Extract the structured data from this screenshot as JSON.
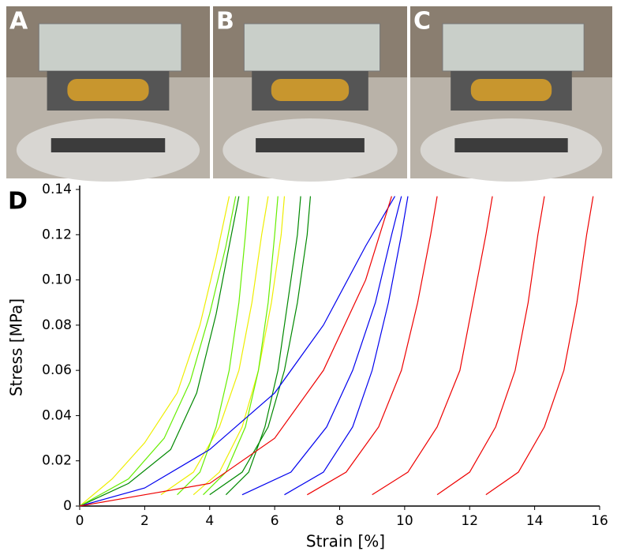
{
  "panel_labels": [
    "A",
    "B",
    "C"
  ],
  "chart_data": {
    "type": "line",
    "panel_label": "D",
    "x_label": "Strain [%]",
    "y_label": "Stress [MPa]",
    "xlim": [
      0,
      16
    ],
    "ylim": [
      0,
      0.14
    ],
    "xticks": [
      0,
      2,
      4,
      6,
      8,
      10,
      12,
      14,
      16
    ],
    "yticks": [
      0,
      0.02,
      0.04,
      0.06,
      0.08,
      {
        "value": 0.1,
        "label": "0.10"
      },
      0.12,
      0.14
    ],
    "series": [
      {
        "color": "#eeee00",
        "x": [
          0,
          1,
          2,
          3,
          3.7,
          4.2,
          4.6
        ],
        "values": [
          0,
          0.012,
          0.028,
          0.05,
          0.08,
          0.11,
          0.137
        ]
      },
      {
        "color": "#eeee00",
        "x": [
          2.5,
          3.5,
          4.3,
          4.9,
          5.3,
          5.6,
          5.8
        ],
        "values": [
          0.005,
          0.015,
          0.035,
          0.06,
          0.09,
          0.12,
          0.137
        ]
      },
      {
        "color": "#eeee00",
        "x": [
          3.5,
          4.3,
          5.0,
          5.5,
          5.9,
          6.2,
          6.3
        ],
        "values": [
          0.005,
          0.015,
          0.035,
          0.06,
          0.09,
          0.12,
          0.137
        ]
      },
      {
        "color": "#008800",
        "x": [
          0,
          1.5,
          2.8,
          3.6,
          4.2,
          4.6,
          4.9
        ],
        "values": [
          0,
          0.01,
          0.025,
          0.05,
          0.085,
          0.115,
          0.137
        ]
      },
      {
        "color": "#008800",
        "x": [
          4.5,
          5.2,
          5.7,
          6.1,
          6.4,
          6.7,
          6.8
        ],
        "values": [
          0.005,
          0.015,
          0.035,
          0.06,
          0.09,
          0.12,
          0.137
        ]
      },
      {
        "color": "#008800",
        "x": [
          4,
          5.0,
          5.8,
          6.3,
          6.7,
          7.0,
          7.1
        ],
        "values": [
          0.005,
          0.015,
          0.035,
          0.06,
          0.09,
          0.12,
          0.137
        ]
      },
      {
        "color": "#66ee00",
        "x": [
          0,
          1.5,
          2.6,
          3.4,
          4.0,
          4.5,
          4.8
        ],
        "values": [
          0,
          0.012,
          0.03,
          0.055,
          0.085,
          0.115,
          0.137
        ]
      },
      {
        "color": "#66ee00",
        "x": [
          3,
          3.7,
          4.2,
          4.6,
          4.9,
          5.1,
          5.2
        ],
        "values": [
          0.005,
          0.015,
          0.035,
          0.06,
          0.09,
          0.12,
          0.137
        ]
      },
      {
        "color": "#66ee00",
        "x": [
          3.8,
          4.5,
          5.1,
          5.5,
          5.8,
          6.0,
          6.1
        ],
        "values": [
          0.005,
          0.015,
          0.035,
          0.06,
          0.09,
          0.12,
          0.137
        ]
      },
      {
        "color": "#0000ee",
        "x": [
          0,
          2,
          4,
          6,
          7.5,
          8.8,
          9.7
        ],
        "values": [
          0,
          0.008,
          0.025,
          0.05,
          0.08,
          0.115,
          0.137
        ]
      },
      {
        "color": "#0000ee",
        "x": [
          5,
          6.5,
          7.6,
          8.4,
          9.1,
          9.6,
          9.9
        ],
        "values": [
          0.005,
          0.015,
          0.035,
          0.06,
          0.09,
          0.12,
          0.137
        ]
      },
      {
        "color": "#0000ee",
        "x": [
          6.3,
          7.5,
          8.4,
          9.0,
          9.5,
          9.9,
          10.1
        ],
        "values": [
          0.005,
          0.015,
          0.035,
          0.06,
          0.09,
          0.12,
          0.137
        ]
      },
      {
        "color": "#ee0000",
        "x": [
          0,
          2,
          4,
          6,
          7.5,
          8.8,
          9.6
        ],
        "values": [
          0,
          0.005,
          0.01,
          0.03,
          0.06,
          0.1,
          0.137
        ]
      },
      {
        "color": "#ee0000",
        "x": [
          7,
          8.2,
          9.2,
          9.9,
          10.4,
          10.8,
          11
        ],
        "values": [
          0.005,
          0.015,
          0.035,
          0.06,
          0.09,
          0.12,
          0.137
        ]
      },
      {
        "color": "#ee0000",
        "x": [
          9,
          10.1,
          11.0,
          11.7,
          12.1,
          12.5,
          12.7
        ],
        "values": [
          0.005,
          0.015,
          0.035,
          0.06,
          0.09,
          0.12,
          0.137
        ]
      },
      {
        "color": "#ee0000",
        "x": [
          11,
          12,
          12.8,
          13.4,
          13.8,
          14.1,
          14.3
        ],
        "values": [
          0.005,
          0.015,
          0.035,
          0.06,
          0.09,
          0.12,
          0.137
        ]
      },
      {
        "color": "#ee0000",
        "x": [
          12.5,
          13.5,
          14.3,
          14.9,
          15.3,
          15.6,
          15.8
        ],
        "values": [
          0.005,
          0.015,
          0.035,
          0.06,
          0.09,
          0.12,
          0.137
        ]
      }
    ]
  }
}
